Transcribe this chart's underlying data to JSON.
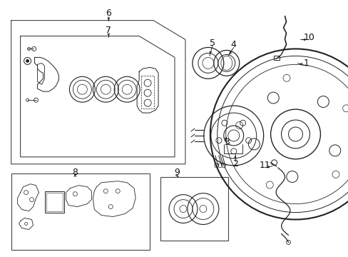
{
  "bg_color": "#ffffff",
  "fig_width": 4.89,
  "fig_height": 3.6,
  "dpi": 100,
  "lc": "#222222",
  "lc_light": "#555555",
  "box_color": "#444444",
  "label_fs": 9,
  "label_color": "#111111"
}
